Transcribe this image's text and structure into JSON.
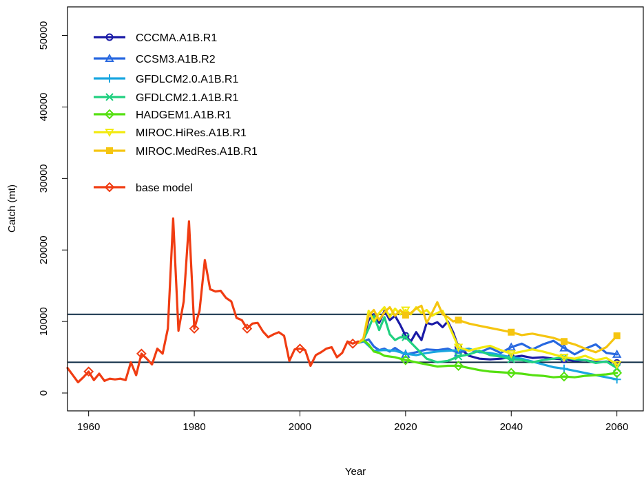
{
  "chart_data": {
    "type": "line",
    "title": "",
    "xlabel": "Year",
    "ylabel": "Catch (mt)",
    "xlim": [
      1956,
      2065
    ],
    "ylim": [
      -2500,
      54000
    ],
    "xticks": [
      1960,
      1980,
      2000,
      2020,
      2040,
      2060
    ],
    "yticks": [
      0,
      10000,
      20000,
      30000,
      40000,
      50000
    ],
    "xtick_labels": [
      "1960",
      "1980",
      "2000",
      "2020",
      "2040",
      "2060"
    ],
    "ytick_labels": [
      "0",
      "10000",
      "20000",
      "30000",
      "40000",
      "50000"
    ],
    "reference_lines": [
      11000,
      4300
    ],
    "reference_line_color": "#0d2b45",
    "grid": false,
    "legend_position": "top-left",
    "series": [
      {
        "name": "base model",
        "color": "#f03c12",
        "marker": "diamond",
        "x": [
          1956,
          1957,
          1958,
          1959,
          1960,
          1961,
          1962,
          1963,
          1964,
          1965,
          1966,
          1967,
          1968,
          1969,
          1970,
          1971,
          1972,
          1973,
          1974,
          1975,
          1976,
          1977,
          1978,
          1979,
          1980,
          1981,
          1982,
          1983,
          1984,
          1985,
          1986,
          1987,
          1988,
          1989,
          1990,
          1991,
          1992,
          1993,
          1994,
          1995,
          1996,
          1997,
          1998,
          1999,
          2000,
          2001,
          2002,
          2003,
          2004,
          2005,
          2006,
          2007,
          2008,
          2009,
          2010,
          2011
        ],
        "y": [
          3500,
          2500,
          1500,
          2200,
          3000,
          1800,
          2700,
          1700,
          2000,
          1900,
          2000,
          1800,
          4300,
          2500,
          5500,
          4800,
          4000,
          6200,
          5500,
          9000,
          24400,
          8700,
          12800,
          24000,
          9000,
          11500,
          18600,
          14500,
          14200,
          14300,
          13300,
          12800,
          10500,
          10200,
          9000,
          9700,
          9800,
          8600,
          7800,
          8200,
          8500,
          8000,
          4500,
          6100,
          6200,
          6000,
          3800,
          5300,
          5700,
          6200,
          6400,
          5000,
          5600,
          7200,
          6900,
          7200
        ]
      },
      {
        "name": "CCCMA.A1B.R1",
        "color": "#1a1aa6",
        "marker": "circle",
        "x": [
          2011,
          2012,
          2013,
          2014,
          2015,
          2016,
          2017,
          2018,
          2019,
          2020,
          2021,
          2022,
          2023,
          2024,
          2025,
          2026,
          2027,
          2028,
          2029,
          2030,
          2032,
          2034,
          2036,
          2038,
          2040,
          2042,
          2044,
          2046,
          2048,
          2050,
          2052,
          2054,
          2056,
          2058,
          2060
        ],
        "y": [
          7000,
          7500,
          10200,
          11000,
          9800,
          11500,
          10200,
          10800,
          9500,
          8000,
          7200,
          8500,
          7400,
          9800,
          9600,
          9900,
          9200,
          10000,
          8500,
          6400,
          5200,
          4800,
          4700,
          4800,
          5000,
          5200,
          4900,
          5000,
          4800,
          4700,
          4500,
          4600,
          4300,
          4400,
          4200
        ]
      },
      {
        "name": "CCSM3.A1B.R2",
        "color": "#2868e0",
        "marker": "triangle",
        "x": [
          2011,
          2012,
          2013,
          2014,
          2015,
          2016,
          2017,
          2018,
          2019,
          2020,
          2022,
          2024,
          2026,
          2028,
          2030,
          2032,
          2034,
          2036,
          2038,
          2040,
          2042,
          2044,
          2046,
          2048,
          2050,
          2052,
          2054,
          2056,
          2058,
          2060
        ],
        "y": [
          7000,
          7200,
          7500,
          6500,
          6000,
          6200,
          5800,
          6300,
          5800,
          5400,
          5700,
          6100,
          6000,
          6200,
          5600,
          6100,
          5700,
          6300,
          5600,
          6400,
          6900,
          6100,
          6800,
          7300,
          6300,
          5400,
          6200,
          6800,
          5600,
          5400
        ]
      },
      {
        "name": "GFDLCM2.0.A1B.R1",
        "color": "#1aa6e0",
        "marker": "plus",
        "x": [
          2011,
          2012,
          2013,
          2014,
          2016,
          2018,
          2020,
          2022,
          2024,
          2026,
          2028,
          2030,
          2032,
          2034,
          2036,
          2038,
          2040,
          2042,
          2044,
          2046,
          2048,
          2050,
          2052,
          2054,
          2056,
          2058,
          2060
        ],
        "y": [
          7000,
          7300,
          6600,
          5900,
          6000,
          5900,
          5500,
          5300,
          5600,
          5800,
          5900,
          6000,
          6200,
          5700,
          5600,
          5300,
          5000,
          4800,
          4400,
          4000,
          3600,
          3400,
          3100,
          2800,
          2500,
          2200,
          1900
        ]
      },
      {
        "name": "GFDLCM2.1.A1B.R1",
        "color": "#20d080",
        "marker": "x",
        "x": [
          2011,
          2012,
          2013,
          2014,
          2015,
          2016,
          2017,
          2018,
          2019,
          2020,
          2022,
          2024,
          2026,
          2028,
          2030,
          2032,
          2034,
          2036,
          2038,
          2040,
          2042,
          2044,
          2046,
          2048,
          2050,
          2052,
          2054,
          2056,
          2058,
          2060
        ],
        "y": [
          7000,
          7400,
          9000,
          10800,
          8800,
          10600,
          8200,
          7400,
          7800,
          7800,
          6300,
          4800,
          4300,
          4500,
          5100,
          5400,
          5900,
          5300,
          5100,
          4700,
          4600,
          4300,
          4600,
          4800,
          5000,
          4700,
          4600,
          4200,
          4400,
          3500
        ]
      },
      {
        "name": "HADGEM1.A1B.R1",
        "color": "#55e010",
        "marker": "diamond",
        "x": [
          2011,
          2012,
          2013,
          2014,
          2015,
          2016,
          2018,
          2020,
          2022,
          2024,
          2026,
          2028,
          2030,
          2032,
          2034,
          2036,
          2038,
          2040,
          2042,
          2044,
          2046,
          2048,
          2050,
          2052,
          2054,
          2056,
          2058,
          2060
        ],
        "y": [
          7000,
          7400,
          6800,
          5800,
          5600,
          5200,
          5000,
          4600,
          4300,
          4000,
          3700,
          3800,
          3800,
          3500,
          3200,
          3000,
          2900,
          2800,
          2700,
          2500,
          2400,
          2200,
          2300,
          2200,
          2400,
          2500,
          2600,
          2800
        ]
      },
      {
        "name": "MIROC.HiRes.A1B.R1",
        "color": "#f2ea10",
        "marker": "triangle-down",
        "x": [
          2011,
          2012,
          2013,
          2014,
          2015,
          2016,
          2017,
          2018,
          2019,
          2020,
          2021,
          2022,
          2023,
          2024,
          2025,
          2026,
          2027,
          2028,
          2030,
          2032,
          2034,
          2036,
          2038,
          2040,
          2042,
          2044,
          2046,
          2048,
          2050,
          2052,
          2054,
          2056,
          2058,
          2060
        ],
        "y": [
          7000,
          7500,
          11500,
          10000,
          11200,
          12000,
          10600,
          11800,
          11000,
          11600,
          11000,
          12000,
          11200,
          11600,
          10800,
          11200,
          11500,
          9800,
          6400,
          5900,
          6300,
          6600,
          6000,
          5500,
          5800,
          6100,
          5800,
          5400,
          5000,
          4800,
          5200,
          4600,
          4900,
          4000
        ]
      },
      {
        "name": "MIROC.MedRes.A1B.R1",
        "color": "#f5c510",
        "marker": "square",
        "x": [
          2011,
          2012,
          2013,
          2014,
          2015,
          2016,
          2017,
          2018,
          2019,
          2020,
          2021,
          2022,
          2023,
          2024,
          2025,
          2026,
          2027,
          2028,
          2029,
          2030,
          2032,
          2034,
          2036,
          2038,
          2040,
          2042,
          2044,
          2046,
          2048,
          2050,
          2052,
          2054,
          2056,
          2058,
          2060
        ],
        "y": [
          7000,
          7600,
          10800,
          11600,
          10200,
          11300,
          12000,
          10800,
          11600,
          10900,
          11200,
          11800,
          12200,
          9800,
          11200,
          12700,
          11000,
          10600,
          10000,
          10200,
          9700,
          9400,
          9100,
          8800,
          8500,
          8100,
          8300,
          8000,
          7700,
          7200,
          6800,
          6200,
          5700,
          6400,
          8000
        ]
      }
    ]
  },
  "legend": {
    "entries": [
      {
        "label": "CCCMA.A1B.R1",
        "color": "#1a1aa6",
        "marker": "circle"
      },
      {
        "label": "CCSM3.A1B.R2",
        "color": "#2868e0",
        "marker": "triangle"
      },
      {
        "label": "GFDLCM2.0.A1B.R1",
        "color": "#1aa6e0",
        "marker": "plus"
      },
      {
        "label": "GFDLCM2.1.A1B.R1",
        "color": "#20d080",
        "marker": "x"
      },
      {
        "label": "HADGEM1.A1B.R1",
        "color": "#55e010",
        "marker": "diamond"
      },
      {
        "label": "MIROC.HiRes.A1B.R1",
        "color": "#f2ea10",
        "marker": "triangle-down"
      },
      {
        "label": "MIROC.MedRes.A1B.R1",
        "color": "#f5c510",
        "marker": "square"
      },
      {
        "label": "base model",
        "color": "#f03c12",
        "marker": "diamond"
      }
    ]
  }
}
